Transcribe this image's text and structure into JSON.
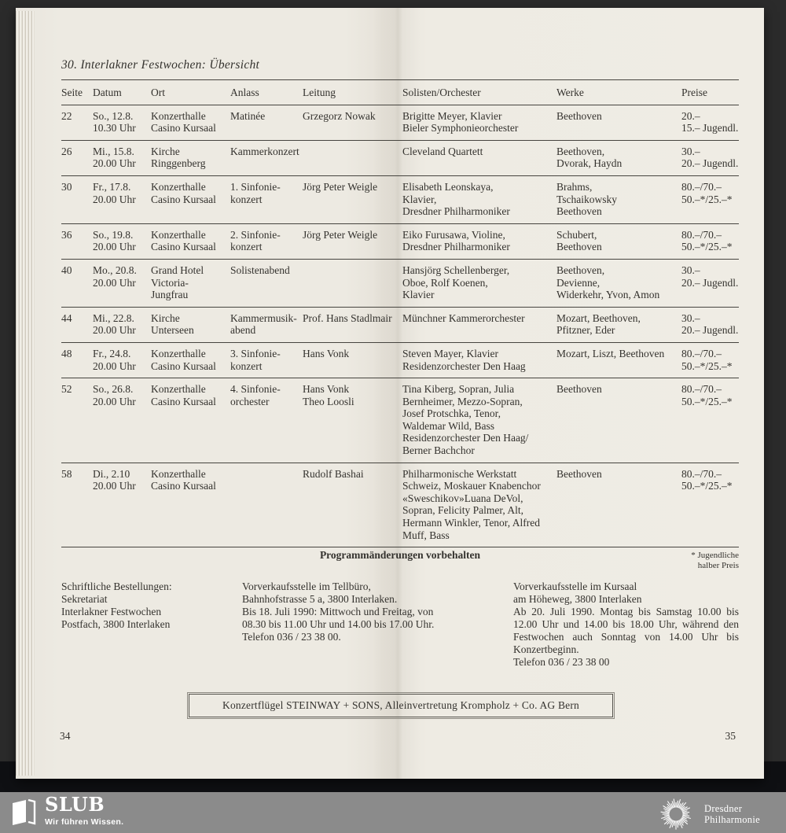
{
  "page": {
    "title": "30. Interlakner Festwochen: Übersicht",
    "left_page_number": "34",
    "right_page_number": "35"
  },
  "table": {
    "columns": [
      "Seite",
      "Datum",
      "Ort",
      "Anlass",
      "Leitung",
      "Solisten/Orchester",
      "Werke",
      "Preise"
    ],
    "rows": [
      {
        "seite": "22",
        "datum": "So., 12.8.\n10.30 Uhr",
        "ort": "Konzerthalle\nCasino Kursaal",
        "anlass": "Matinée",
        "leitung": "Grzegorz Nowak",
        "solisten": "Brigitte Meyer, Klavier\nBieler Symphonieorchester",
        "werke": "Beethoven",
        "preise": "20.–\n15.– Jugendl."
      },
      {
        "seite": "26",
        "datum": "Mi., 15.8.\n20.00 Uhr",
        "ort": "Kirche\nRinggenberg",
        "anlass": "Kammerkonzert",
        "leitung": "",
        "solisten": "Cleveland Quartett",
        "werke": "Beethoven,\nDvorak, Haydn",
        "preise": "30.–\n20.– Jugendl."
      },
      {
        "seite": "30",
        "datum": "Fr., 17.8.\n20.00 Uhr",
        "ort": "Konzerthalle\nCasino Kursaal",
        "anlass": "1. Sinfonie-\nkonzert",
        "leitung": "Jörg Peter Weigle",
        "solisten": "Elisabeth Leonskaya,\nKlavier,\nDresdner Philharmoniker",
        "werke": "Brahms,\nTschaikowsky\nBeethoven",
        "preise": "80.–/70.–\n50.–*/25.–*"
      },
      {
        "seite": "36",
        "datum": "So., 19.8.\n20.00 Uhr",
        "ort": "Konzerthalle\nCasino Kursaal",
        "anlass": "2. Sinfonie-\nkonzert",
        "leitung": "Jörg Peter Weigle",
        "solisten": "Eiko Furusawa, Violine,\nDresdner Philharmoniker",
        "werke": "Schubert,\nBeethoven",
        "preise": "80.–/70.–\n50.–*/25.–*"
      },
      {
        "seite": "40",
        "datum": "Mo., 20.8.\n20.00 Uhr",
        "ort": "Grand Hotel\nVictoria-\nJungfrau",
        "anlass": "Solistenabend",
        "leitung": "",
        "solisten": "Hansjörg Schellenberger,\nOboe, Rolf Koenen,\nKlavier",
        "werke": "Beethoven,\nDevienne,\nWiderkehr, Yvon, Amon",
        "preise": "30.–\n20.– Jugendl."
      },
      {
        "seite": "44",
        "datum": "Mi., 22.8.\n20.00 Uhr",
        "ort": "Kirche\nUnterseen",
        "anlass": "Kammermusik-\nabend",
        "leitung": "Prof. Hans Stadlmair",
        "solisten": "Münchner Kammerorchester",
        "werke": "Mozart, Beethoven,\nPfitzner, Eder",
        "preise": "30.–\n20.– Jugendl."
      },
      {
        "seite": "48",
        "datum": "Fr., 24.8.\n20.00 Uhr",
        "ort": "Konzerthalle\nCasino Kursaal",
        "anlass": "3. Sinfonie-\nkonzert",
        "leitung": "Hans Vonk",
        "solisten": "Steven Mayer, Klavier\nResidenzorchester Den Haag",
        "werke": "Mozart, Liszt, Beethoven",
        "preise": "80.–/70.–\n50.–*/25.–*"
      },
      {
        "seite": "52",
        "datum": "So., 26.8.\n20.00 Uhr",
        "ort": "Konzerthalle\nCasino Kursaal",
        "anlass": "4. Sinfonie-\norchester",
        "leitung": "Hans Vonk\nTheo Loosli",
        "solisten": "Tina Kiberg, Sopran, Julia\nBernheimer, Mezzo-Sopran,\nJosef Protschka, Tenor,\nWaldemar Wild, Bass\nResidenzorchester Den Haag/\nBerner Bachchor",
        "werke": "Beethoven",
        "preise": "80.–/70.–\n50.–*/25.–*"
      },
      {
        "seite": "58",
        "datum": "Di., 2.10\n20.00 Uhr",
        "ort": "Konzerthalle\nCasino Kursaal",
        "anlass": "",
        "leitung": "Rudolf Bashai",
        "solisten": "Philharmonische Werkstatt\nSchweiz, Moskauer Knabenchor\n«Sweschikov»Luana DeVol,\nSopran, Felicity Palmer, Alt,\nHermann Winkler, Tenor, Alfred\nMuff, Bass",
        "werke": "Beethoven",
        "preise": "80.–/70.–\n50.–*/25.–*"
      }
    ]
  },
  "notes": {
    "program_change": "Programmänderungen vorbehalten",
    "price_footnote": "* Jugendliche\nhalber Preis"
  },
  "ordering": {
    "col1": "Schriftliche Bestellungen:\nSekretariat\nInterlakner Festwochen\nPostfach, 3800 Interlaken",
    "col2": "Vorverkaufsstelle im Tellbüro,\nBahnhofstrasse 5 a, 3800 Interlaken.\nBis 18. Juli 1990: Mittwoch und Freitag, von\n08.30 bis 11.00 Uhr und 14.00 bis 17.00 Uhr.\nTelefon 036 / 23 38 00.",
    "col3": "Vorverkaufsstelle im Kursaal\nam Höheweg, 3800 Interlaken\nAb 20. Juli 1990. Montag bis Samstag 10.00 bis 12.00 Uhr und 14.00 bis 18.00 Uhr, während den Festwochen auch Sonntag von 14.00 Uhr bis Konzertbeginn.\nTelefon 036 / 23 38 00"
  },
  "advert": "Konzertflügel STEINWAY + SONS, Alleinvertretung Krompholz + Co. AG Bern",
  "footer": {
    "slub_name": "SLUB",
    "slub_tagline": "Wir führen Wissen.",
    "partner_name": "Dresdner\nPhilharmonie",
    "bar_color": "#8b8b8b"
  },
  "colors": {
    "paper": "#edeae2",
    "surround": "#2b2b2b",
    "text": "#34322e",
    "rule": "#46443f",
    "footer_bar": "#8b8b8b"
  }
}
